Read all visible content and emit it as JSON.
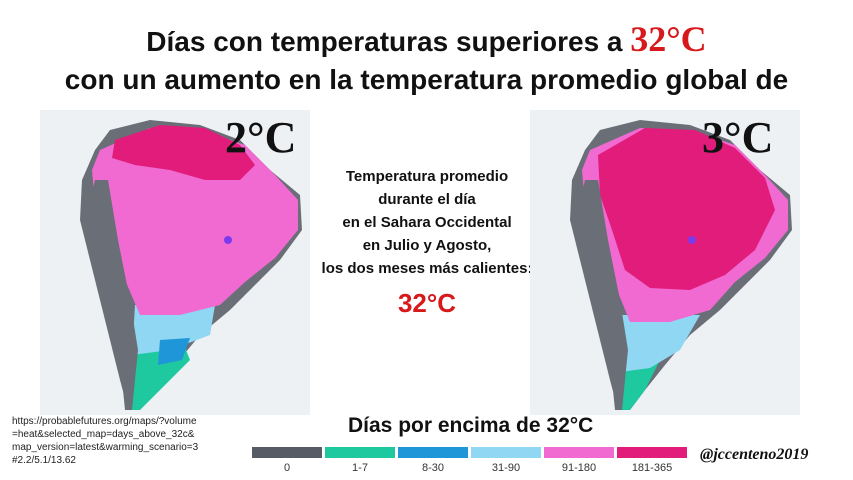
{
  "title": {
    "line1_prefix": "Días con temperaturas superiores a ",
    "line1_temp": "32°C",
    "line2": "con un aumento en la temperatura  promedio global de"
  },
  "maps": {
    "left_label": "2°C",
    "right_label": "3°C"
  },
  "center_note": {
    "lines": [
      "Temperatura promedio",
      "durante el día",
      "en el Sahara Occidental",
      "en Julio y Agosto,",
      "los dos meses más calientes:"
    ],
    "temp": "32°C"
  },
  "source_url": "https://probablefutures.org/maps/?volume=heat&selected_map=days_above_32c&map_version=latest&warming_scenario=3#2.2/5.1/13.62",
  "legend": {
    "title": "Días por encima de 32°C",
    "items": [
      {
        "label": "0",
        "color": "#575b66"
      },
      {
        "label": "1-7",
        "color": "#1fc9a0"
      },
      {
        "label": "8-30",
        "color": "#1e96d8"
      },
      {
        "label": "31-90",
        "color": "#8fd7f3"
      },
      {
        "label": "91-180",
        "color": "#f06ad2"
      },
      {
        "label": "181-365",
        "color": "#e11c7a"
      }
    ]
  },
  "handle": "@jccenteno2019"
}
